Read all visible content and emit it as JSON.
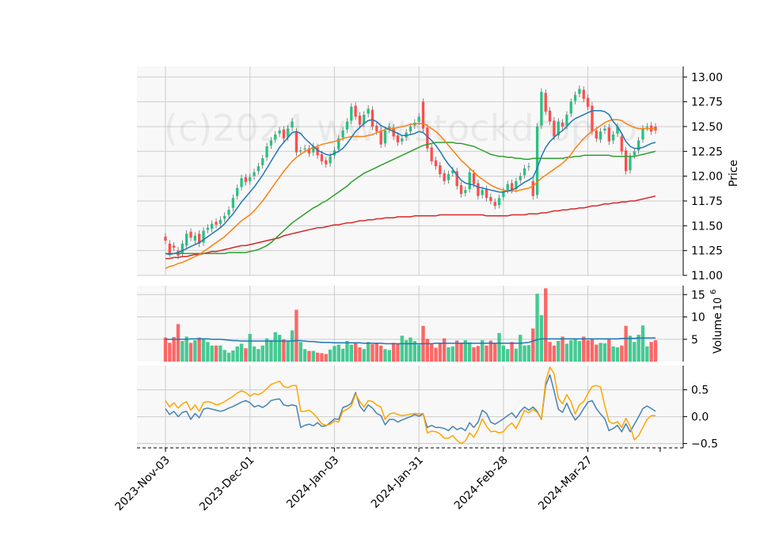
{
  "watermark": "(c)2024 www.stockdrop.io",
  "colors": {
    "up": "#26c281",
    "down": "#ff4d4d",
    "ma_short": "#1f77b4",
    "ma_mid": "#ff7f0e",
    "ma_long": "#2ca02c",
    "ma_longest": "#d62728",
    "volume_ma": "#1f77b4",
    "osc_a": "#4682b4",
    "osc_b": "#ffa500",
    "panel_bg": "#f8f8f8",
    "grid": "#cccccc"
  },
  "chart_data": {
    "type": "candlestick",
    "x_tick_labels": [
      "2023-Nov-03",
      "2023-Dec-01",
      "2024-Jan-03",
      "2024-Jan-31",
      "2024-Feb-28",
      "2024-Mar-27"
    ],
    "x_tick_indices": [
      0,
      20,
      40,
      60,
      80,
      100
    ],
    "price_panel": {
      "ylabel": "Price",
      "ylim": [
        11.0,
        13.05
      ],
      "yticks": [
        "11.00",
        "11.25",
        "11.50",
        "11.75",
        "12.00",
        "12.25",
        "12.50",
        "12.75",
        "13.00"
      ],
      "ytick_values": [
        11.0,
        11.25,
        11.5,
        11.75,
        12.0,
        12.25,
        12.5,
        12.75,
        13.0
      ],
      "close": [
        11.35,
        11.22,
        11.28,
        11.2,
        11.32,
        11.42,
        11.38,
        11.4,
        11.32,
        11.45,
        11.48,
        11.52,
        11.51,
        11.56,
        11.6,
        11.66,
        11.78,
        11.88,
        11.98,
        11.94,
        11.99,
        12.04,
        12.1,
        12.18,
        12.3,
        12.36,
        12.42,
        12.46,
        12.38,
        12.48,
        12.55,
        12.24,
        12.26,
        12.28,
        12.23,
        12.3,
        12.21,
        12.15,
        12.12,
        12.2,
        12.26,
        12.38,
        12.46,
        12.55,
        12.7,
        12.6,
        12.52,
        12.62,
        12.68,
        12.5,
        12.45,
        12.32,
        12.46,
        12.5,
        12.4,
        12.34,
        12.38,
        12.44,
        12.5,
        12.54,
        12.6,
        12.48,
        12.28,
        12.15,
        12.1,
        12.02,
        11.95,
        12.02,
        12.06,
        11.9,
        11.82,
        11.86,
        12.04,
        11.92,
        11.8,
        11.86,
        11.78,
        11.75,
        11.7,
        11.78,
        11.85,
        11.92,
        11.86,
        11.95,
        12.0,
        12.08,
        12.1,
        11.8,
        12.5,
        12.85,
        12.65,
        12.55,
        12.4,
        12.55,
        12.5,
        12.62,
        12.75,
        12.82,
        12.88,
        12.78,
        12.7,
        12.45,
        12.38,
        12.45,
        12.48,
        12.35,
        12.42,
        12.5,
        12.25,
        12.05,
        12.2,
        12.25,
        12.36,
        12.48,
        12.5,
        12.45,
        12.46
      ],
      "open": [
        11.39,
        11.32,
        11.3,
        11.25,
        11.22,
        11.3,
        11.44,
        11.35,
        11.42,
        11.33,
        11.46,
        11.47,
        11.54,
        11.52,
        11.57,
        11.61,
        11.68,
        11.8,
        11.89,
        11.99,
        11.95,
        12.0,
        12.05,
        12.11,
        12.19,
        12.31,
        12.37,
        12.43,
        12.47,
        12.39,
        12.49,
        12.45,
        12.25,
        12.27,
        12.28,
        12.24,
        12.29,
        12.22,
        12.16,
        12.13,
        12.21,
        12.27,
        12.39,
        12.47,
        12.56,
        12.71,
        12.61,
        12.53,
        12.63,
        12.67,
        12.51,
        12.46,
        12.33,
        12.47,
        12.49,
        12.41,
        12.35,
        12.39,
        12.45,
        12.51,
        12.55,
        12.75,
        12.49,
        12.29,
        12.16,
        12.11,
        12.03,
        11.96,
        12.03,
        12.05,
        11.91,
        11.83,
        11.87,
        12.03,
        11.93,
        11.81,
        11.87,
        11.79,
        11.74,
        11.71,
        11.79,
        11.86,
        11.93,
        11.87,
        11.96,
        12.01,
        12.09,
        11.95,
        11.81,
        12.51,
        12.84,
        12.66,
        12.56,
        12.41,
        12.54,
        12.51,
        12.63,
        12.76,
        12.83,
        12.87,
        12.79,
        12.71,
        12.46,
        12.37,
        12.46,
        12.49,
        12.36,
        12.43,
        12.4,
        12.26,
        12.06,
        12.21,
        12.26,
        12.37,
        12.49,
        12.51,
        12.5
      ],
      "ma_short": [
        11.22,
        11.21,
        11.22,
        11.23,
        11.25,
        11.27,
        11.29,
        11.31,
        11.33,
        11.36,
        11.39,
        11.42,
        11.45,
        11.48,
        11.52,
        11.57,
        11.62,
        11.68,
        11.74,
        11.79,
        11.84,
        11.89,
        11.95,
        12.01,
        12.08,
        12.15,
        12.22,
        12.29,
        12.34,
        12.39,
        12.44,
        12.45,
        12.43,
        12.38,
        12.34,
        12.3,
        12.26,
        12.24,
        12.22,
        12.21,
        12.23,
        12.25,
        12.28,
        12.33,
        12.39,
        12.45,
        12.49,
        12.53,
        12.56,
        12.57,
        12.55,
        12.51,
        12.49,
        12.47,
        12.45,
        12.43,
        12.41,
        12.41,
        12.42,
        12.43,
        12.45,
        12.44,
        12.4,
        12.36,
        12.31,
        12.25,
        12.18,
        12.12,
        12.07,
        12.01,
        11.96,
        11.93,
        11.92,
        11.91,
        11.89,
        11.88,
        11.87,
        11.86,
        11.85,
        11.84,
        11.84,
        11.85,
        11.86,
        11.88,
        11.91,
        11.94,
        11.96,
        11.99,
        12.08,
        12.2,
        12.29,
        12.35,
        12.39,
        12.43,
        12.46,
        12.5,
        12.55,
        12.58,
        12.6,
        12.62,
        12.64,
        12.66,
        12.66,
        12.66,
        12.65,
        12.62,
        12.55,
        12.5,
        12.43,
        12.35,
        12.3,
        12.28,
        12.28,
        12.29,
        12.31,
        12.33,
        12.34
      ],
      "ma_mid": [
        11.07,
        11.09,
        11.1,
        11.12,
        11.13,
        11.15,
        11.17,
        11.19,
        11.21,
        11.24,
        11.27,
        11.3,
        11.33,
        11.36,
        11.39,
        11.43,
        11.47,
        11.51,
        11.55,
        11.58,
        11.61,
        11.65,
        11.7,
        11.75,
        11.81,
        11.87,
        11.93,
        11.99,
        12.05,
        12.1,
        12.15,
        12.19,
        12.22,
        12.25,
        12.27,
        12.29,
        12.3,
        12.32,
        12.33,
        12.34,
        12.35,
        12.36,
        12.38,
        12.39,
        12.4,
        12.4,
        12.4,
        12.4,
        12.41,
        12.42,
        12.44,
        12.45,
        12.47,
        12.48,
        12.48,
        12.49,
        12.5,
        12.51,
        12.52,
        12.53,
        12.53,
        12.53,
        12.51,
        12.48,
        12.45,
        12.41,
        12.36,
        12.31,
        12.26,
        12.21,
        12.16,
        12.12,
        12.08,
        12.04,
        12.0,
        11.97,
        11.94,
        11.91,
        11.89,
        11.87,
        11.86,
        11.85,
        11.85,
        11.85,
        11.86,
        11.87,
        11.88,
        11.9,
        11.94,
        11.98,
        12.01,
        12.04,
        12.07,
        12.1,
        12.13,
        12.17,
        12.22,
        12.28,
        12.33,
        12.38,
        12.42,
        12.45,
        12.48,
        12.51,
        12.54,
        12.56,
        12.57,
        12.57,
        12.56,
        12.53,
        12.51,
        12.49,
        12.48,
        12.48,
        12.48,
        12.48,
        12.48
      ],
      "ma_long": [
        11.22,
        11.22,
        11.22,
        11.22,
        11.22,
        11.22,
        11.22,
        11.22,
        11.22,
        11.22,
        11.22,
        11.22,
        11.22,
        11.22,
        11.22,
        11.23,
        11.23,
        11.23,
        11.23,
        11.23,
        11.24,
        11.25,
        11.26,
        11.28,
        11.3,
        11.33,
        11.37,
        11.41,
        11.45,
        11.49,
        11.53,
        11.56,
        11.59,
        11.62,
        11.65,
        11.68,
        11.7,
        11.73,
        11.75,
        11.78,
        11.81,
        11.84,
        11.87,
        11.9,
        11.94,
        11.97,
        12.0,
        12.03,
        12.05,
        12.07,
        12.09,
        12.11,
        12.13,
        12.15,
        12.17,
        12.19,
        12.21,
        12.23,
        12.25,
        12.27,
        12.29,
        12.31,
        12.32,
        12.33,
        12.34,
        12.34,
        12.34,
        12.34,
        12.34,
        12.33,
        12.33,
        12.32,
        12.31,
        12.3,
        12.28,
        12.26,
        12.24,
        12.22,
        12.21,
        12.2,
        12.2,
        12.19,
        12.19,
        12.18,
        12.18,
        12.17,
        12.17,
        12.18,
        12.18,
        12.18,
        12.18,
        12.18,
        12.18,
        12.18,
        12.18,
        12.19,
        12.19,
        12.2,
        12.2,
        12.21,
        12.21,
        12.21,
        12.21,
        12.21,
        12.21,
        12.21,
        12.2,
        12.2,
        12.2,
        12.2,
        12.2,
        12.2,
        12.21,
        12.22,
        12.23,
        12.24,
        12.25
      ],
      "ma_longest": [
        11.17,
        11.17,
        11.18,
        11.18,
        11.19,
        11.19,
        11.2,
        11.21,
        11.21,
        11.22,
        11.23,
        11.24,
        11.24,
        11.25,
        11.26,
        11.27,
        11.28,
        11.29,
        11.3,
        11.3,
        11.31,
        11.32,
        11.33,
        11.34,
        11.35,
        11.36,
        11.37,
        11.38,
        11.4,
        11.41,
        11.42,
        11.43,
        11.44,
        11.45,
        11.46,
        11.47,
        11.48,
        11.48,
        11.49,
        11.5,
        11.51,
        11.51,
        11.52,
        11.53,
        11.53,
        11.54,
        11.55,
        11.55,
        11.56,
        11.56,
        11.57,
        11.57,
        11.58,
        11.58,
        11.58,
        11.59,
        11.59,
        11.59,
        11.59,
        11.6,
        11.6,
        11.6,
        11.6,
        11.6,
        11.6,
        11.61,
        11.61,
        11.61,
        11.61,
        11.61,
        11.61,
        11.61,
        11.61,
        11.61,
        11.61,
        11.61,
        11.6,
        11.6,
        11.6,
        11.6,
        11.6,
        11.6,
        11.61,
        11.61,
        11.61,
        11.61,
        11.62,
        11.62,
        11.62,
        11.63,
        11.63,
        11.64,
        11.65,
        11.65,
        11.66,
        11.66,
        11.67,
        11.67,
        11.68,
        11.68,
        11.69,
        11.7,
        11.7,
        11.71,
        11.72,
        11.72,
        11.73,
        11.73,
        11.74,
        11.74,
        11.75,
        11.75,
        11.76,
        11.77,
        11.78,
        11.79,
        11.8
      ]
    },
    "volume_panel": {
      "ylabel": "Volume",
      "scale_label": "10",
      "scale_exponent": "6",
      "ylim": [
        0,
        17
      ],
      "yticks": [
        "5",
        "10",
        "15"
      ],
      "ytick_values": [
        5,
        10,
        15
      ],
      "volume": [
        5.4,
        4.2,
        5.5,
        8.4,
        4.6,
        5.6,
        4.2,
        4.8,
        5.4,
        5.0,
        4.4,
        3.6,
        3.6,
        3.6,
        2.6,
        2.0,
        2.5,
        3.4,
        4.0,
        3.0,
        6.2,
        3.4,
        2.8,
        3.6,
        5.2,
        4.8,
        6.6,
        6.0,
        5.0,
        4.6,
        7.0,
        11.6,
        4.4,
        2.8,
        2.4,
        2.4,
        2.0,
        1.9,
        1.7,
        2.7,
        3.5,
        3.8,
        2.9,
        4.6,
        3.8,
        4.2,
        3.2,
        2.8,
        4.4,
        3.9,
        4.1,
        3.6,
        2.8,
        2.6,
        4.2,
        4.0,
        5.8,
        4.8,
        5.4,
        4.6,
        3.8,
        8.0,
        5.1,
        3.9,
        3.1,
        4.0,
        5.2,
        3.2,
        3.4,
        4.7,
        4.2,
        4.8,
        4.3,
        3.2,
        3.5,
        4.8,
        3.6,
        4.7,
        4.2,
        6.4,
        3.6,
        2.8,
        4.4,
        2.9,
        6.0,
        3.6,
        3.7,
        7.4,
        15.2,
        10.4,
        16.4,
        4.4,
        3.6,
        4.6,
        5.6,
        4.0,
        4.8,
        5.2,
        4.6,
        5.6,
        4.8,
        5.2,
        3.8,
        4.2,
        4.1,
        5.1,
        3.4,
        3.2,
        3.6,
        8.0,
        5.8,
        4.4,
        6.0,
        8.1,
        3.4,
        4.4,
        4.8
      ],
      "volume_ma": [
        5.0,
        5.0,
        5.0,
        5.0,
        5.0,
        5.0,
        5.1,
        5.1,
        5.1,
        5.1,
        5.1,
        5.0,
        5.0,
        5.0,
        4.9,
        4.8,
        4.7,
        4.7,
        4.6,
        4.6,
        4.6,
        4.6,
        4.6,
        4.6,
        4.6,
        4.6,
        4.6,
        4.6,
        4.6,
        4.6,
        4.6,
        4.7,
        4.7,
        4.6,
        4.5,
        4.5,
        4.4,
        4.3,
        4.3,
        4.3,
        4.2,
        4.2,
        4.2,
        4.2,
        4.2,
        4.2,
        4.2,
        4.1,
        4.1,
        4.1,
        4.1,
        4.1,
        4.0,
        4.0,
        4.0,
        4.0,
        4.0,
        4.0,
        4.0,
        4.0,
        4.0,
        4.0,
        4.0,
        4.0,
        4.1,
        4.1,
        4.1,
        4.1,
        4.1,
        4.1,
        4.1,
        4.1,
        4.1,
        4.1,
        4.1,
        4.1,
        4.1,
        4.1,
        4.1,
        4.1,
        4.1,
        4.1,
        4.1,
        4.1,
        4.1,
        4.2,
        4.3,
        4.6,
        4.9,
        5.1,
        5.1,
        5.1,
        5.1,
        5.1,
        5.1,
        5.1,
        5.1,
        5.1,
        5.1,
        5.1,
        5.1,
        5.1,
        5.1,
        5.1,
        5.1,
        5.1,
        5.1,
        5.1,
        5.2,
        5.2,
        5.2,
        5.2,
        5.3,
        5.3,
        5.3,
        5.3,
        5.3
      ]
    },
    "oscillator_panel": {
      "ylim": [
        -0.58,
        0.95
      ],
      "yticks": [
        "0.5",
        "0.0",
        "−0.5"
      ],
      "ytick_values": [
        0.5,
        0.0,
        -0.5
      ],
      "series_a": [
        0.15,
        0.04,
        0.1,
        0.0,
        0.08,
        0.1,
        -0.05,
        0.06,
        -0.02,
        0.14,
        0.16,
        0.14,
        0.12,
        0.1,
        0.12,
        0.16,
        0.19,
        0.23,
        0.27,
        0.3,
        0.26,
        0.18,
        0.21,
        0.17,
        0.22,
        0.3,
        0.32,
        0.33,
        0.22,
        0.2,
        0.22,
        0.2,
        -0.2,
        -0.16,
        -0.14,
        -0.17,
        -0.11,
        -0.18,
        -0.17,
        -0.11,
        -0.04,
        -0.05,
        0.17,
        0.2,
        0.25,
        0.45,
        0.2,
        0.1,
        0.22,
        0.16,
        0.06,
        0.02,
        -0.15,
        -0.05,
        -0.05,
        -0.1,
        -0.06,
        -0.03,
        0.0,
        0.04,
        0.01,
        0.05,
        -0.2,
        -0.16,
        -0.2,
        -0.2,
        -0.22,
        -0.26,
        -0.18,
        -0.24,
        -0.21,
        -0.26,
        -0.11,
        -0.2,
        -0.1,
        0.12,
        0.06,
        -0.1,
        -0.14,
        -0.09,
        -0.04,
        0.02,
        0.07,
        -0.02,
        0.1,
        0.18,
        0.12,
        0.18,
        0.1,
        -0.05,
        0.58,
        0.78,
        0.48,
        0.14,
        0.08,
        0.25,
        0.07,
        -0.06,
        0.02,
        0.15,
        0.27,
        0.3,
        0.15,
        0.05,
        -0.04,
        -0.26,
        -0.22,
        -0.16,
        -0.28,
        -0.13,
        -0.28,
        -0.14,
        0.0,
        0.15,
        0.2,
        0.15,
        0.1
      ],
      "series_b": [
        0.3,
        0.18,
        0.26,
        0.16,
        0.24,
        0.28,
        0.12,
        0.22,
        0.1,
        0.26,
        0.28,
        0.26,
        0.22,
        0.24,
        0.28,
        0.33,
        0.38,
        0.44,
        0.48,
        0.45,
        0.38,
        0.43,
        0.41,
        0.45,
        0.52,
        0.6,
        0.63,
        0.66,
        0.56,
        0.54,
        0.58,
        0.58,
        0.1,
        0.1,
        0.12,
        0.06,
        -0.03,
        -0.13,
        -0.16,
        -0.14,
        -0.08,
        -0.1,
        0.1,
        0.14,
        0.2,
        0.42,
        0.28,
        0.18,
        0.3,
        0.28,
        0.22,
        0.18,
        -0.05,
        0.05,
        0.07,
        0.04,
        0.02,
        0.03,
        0.05,
        0.06,
        0.05,
        0.06,
        -0.3,
        -0.27,
        -0.28,
        -0.32,
        -0.4,
        -0.4,
        -0.35,
        -0.44,
        -0.5,
        -0.45,
        -0.3,
        -0.38,
        -0.24,
        -0.04,
        -0.18,
        -0.28,
        -0.27,
        -0.3,
        -0.28,
        -0.18,
        -0.12,
        -0.22,
        -0.06,
        0.12,
        0.07,
        0.14,
        0.08,
        -0.05,
        0.66,
        0.92,
        0.8,
        0.34,
        0.24,
        0.41,
        0.28,
        0.05,
        0.22,
        0.28,
        0.43,
        0.56,
        0.58,
        0.55,
        0.2,
        -0.09,
        -0.13,
        -0.09,
        -0.2,
        -0.03,
        -0.18,
        -0.43,
        -0.35,
        -0.2,
        -0.05,
        0.02,
        0.02
      ]
    }
  }
}
